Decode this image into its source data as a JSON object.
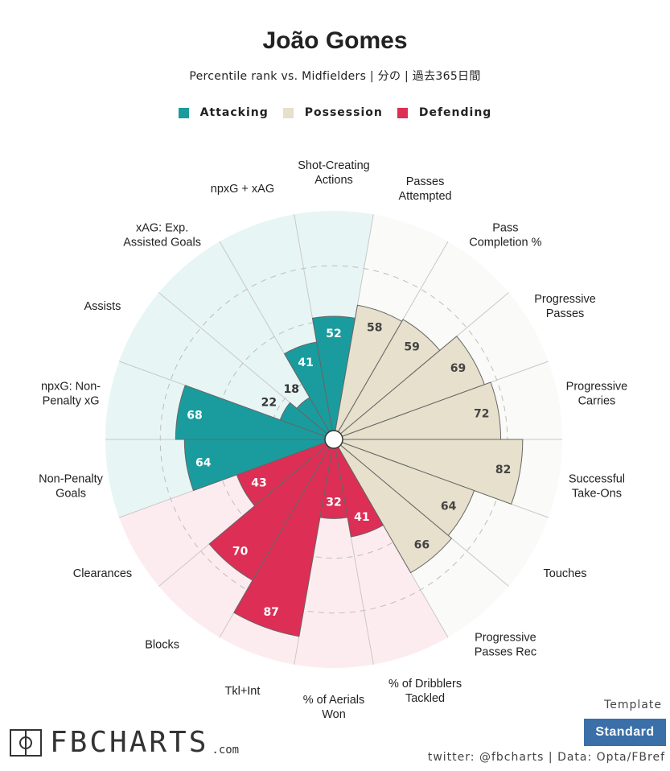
{
  "header": {
    "title": "João Gomes",
    "subtitle": "Percentile rank vs. Midfielders | 分の | 過去365日間"
  },
  "legend": [
    {
      "label": "Attacking",
      "color": "#1a9c9e"
    },
    {
      "label": "Possession",
      "color": "#e6e0cc"
    },
    {
      "label": "Defending",
      "color": "#dd2e55"
    }
  ],
  "colors": {
    "Attacking": {
      "bar": "#1a9c9e",
      "bg": "#e8f5f5",
      "text": "#ffffff",
      "textLow": "#333333"
    },
    "Possession": {
      "bar": "#e6e0cc",
      "bg": "#fafaf8",
      "text": "#444444",
      "textLow": "#444444"
    },
    "Defending": {
      "bar": "#dd2e55",
      "bg": "#fdecef",
      "text": "#ffffff",
      "textLow": "#333333"
    }
  },
  "chart_data": {
    "type": "radar-bar",
    "title": "João Gomes",
    "scale": [
      0,
      100
    ],
    "series": [
      {
        "label": "Shot-Creating\nActions",
        "value": 52,
        "group": "Attacking"
      },
      {
        "label": "Passes\nAttempted",
        "value": 58,
        "group": "Possession"
      },
      {
        "label": "Pass\nCompletion %",
        "value": 59,
        "group": "Possession"
      },
      {
        "label": "Progressive\nPasses",
        "value": 69,
        "group": "Possession"
      },
      {
        "label": "Progressive\nCarries",
        "value": 72,
        "group": "Possession"
      },
      {
        "label": "Successful\nTake-Ons",
        "value": 82,
        "group": "Possession"
      },
      {
        "label": "Touches",
        "value": 64,
        "group": "Possession"
      },
      {
        "label": "Progressive\nPasses Rec",
        "value": 66,
        "group": "Possession"
      },
      {
        "label": "% of Dribblers\nTackled",
        "value": 41,
        "group": "Defending"
      },
      {
        "label": "% of Aerials\nWon",
        "value": 32,
        "group": "Defending"
      },
      {
        "label": "Tkl+Int",
        "value": 87,
        "group": "Defending"
      },
      {
        "label": "Blocks",
        "value": 70,
        "group": "Defending"
      },
      {
        "label": "Clearances",
        "value": 43,
        "group": "Defending"
      },
      {
        "label": "Non-Penalty\nGoals",
        "value": 64,
        "group": "Attacking"
      },
      {
        "label": "npxG: Non-\nPenalty xG",
        "value": 68,
        "group": "Attacking"
      },
      {
        "label": "Assists",
        "value": 22,
        "group": "Attacking"
      },
      {
        "label": "xAG: Exp.\nAssisted Goals",
        "value": 18,
        "group": "Attacking"
      },
      {
        "label": "npxG + xAG",
        "value": 41,
        "group": "Attacking"
      }
    ]
  },
  "footer": {
    "logo_text": "FBCHARTS",
    "logo_suffix": ".com",
    "template_label": "Template",
    "template_button": "Standard",
    "credit": "twitter: @fbcharts | Data: Opta/FBref"
  }
}
